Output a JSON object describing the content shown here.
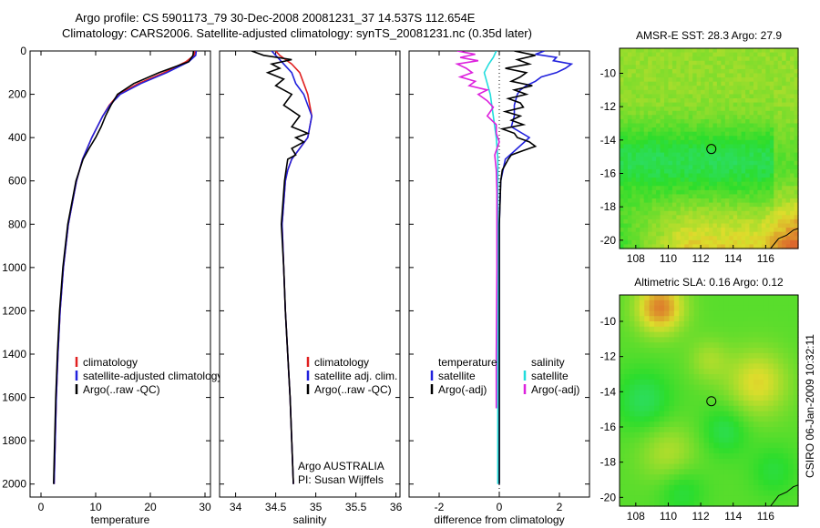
{
  "header": {
    "line1": "Argo profile: CS 5901173_79 30-Dec-2008 20081231_37 14.537S 112.654E",
    "line2": "Climatology: CARS2006. Satellite-adjusted climatology: synTS_20081231.nc (0.35d later)"
  },
  "colors": {
    "climatology": "#e02020",
    "satellite": "#2222dd",
    "argo": "#000000",
    "cyan": "#22dddd",
    "magenta": "#dd22dd"
  },
  "credit": {
    "line1": "Argo AUSTRALIA",
    "line2": "PI: Susan Wijffels"
  },
  "stamp": "CSIRO 06-Jan-2009 10:32:11",
  "chart_data": [
    {
      "type": "line",
      "id": "temperature",
      "xlabel": "temperature",
      "ylabel": "",
      "xlim": [
        -2,
        31
      ],
      "ylim": [
        0,
        2060
      ],
      "xticks": [
        "0",
        "10",
        "20",
        "30"
      ],
      "yticks": [
        "0",
        "200",
        "400",
        "600",
        "800",
        "1000",
        "1200",
        "1400",
        "1600",
        "1800",
        "2000"
      ],
      "legend": [
        "climatology",
        "satellite-adjusted climatology",
        "Argo(..raw -QC)"
      ],
      "series": [
        {
          "name": "climatology",
          "color_key": "climatology",
          "depth": [
            0,
            20,
            50,
            100,
            150,
            200,
            250,
            300,
            400,
            500,
            600,
            800,
            1000,
            1200,
            1400,
            1600,
            1800,
            2000
          ],
          "values": [
            28.2,
            28.0,
            26.5,
            22.5,
            17.8,
            14.2,
            12.5,
            11.3,
            9.3,
            7.6,
            6.5,
            5.0,
            4.1,
            3.5,
            3.1,
            2.8,
            2.6,
            2.4
          ]
        },
        {
          "name": "satellite-adjusted climatology",
          "color_key": "satellite",
          "depth": [
            0,
            20,
            50,
            100,
            150,
            200,
            250,
            300,
            400,
            500,
            600,
            800,
            1000,
            1200,
            1400,
            1600,
            1800,
            2000
          ],
          "values": [
            28.4,
            28.3,
            27.0,
            23.0,
            18.3,
            14.5,
            12.6,
            11.3,
            9.3,
            7.6,
            6.5,
            5.0,
            4.1,
            3.5,
            3.1,
            2.8,
            2.6,
            2.4
          ]
        },
        {
          "name": "Argo(..raw -QC)",
          "color_key": "argo",
          "depth": [
            0,
            20,
            50,
            100,
            150,
            200,
            250,
            300,
            350,
            400,
            450,
            500,
            600,
            800,
            1000,
            1200,
            1400,
            1600,
            1800,
            2000
          ],
          "values": [
            27.9,
            27.8,
            27.0,
            21.6,
            17.0,
            14.0,
            12.8,
            11.8,
            11.0,
            10.0,
            8.8,
            7.7,
            6.4,
            4.9,
            4.0,
            3.4,
            3.0,
            2.7,
            2.5,
            2.3
          ]
        }
      ]
    },
    {
      "type": "line",
      "id": "salinity",
      "xlabel": "salinity",
      "ylabel": "",
      "xlim": [
        33.8,
        36.05
      ],
      "ylim": [
        0,
        2060
      ],
      "xticks": [
        "34",
        "34.5",
        "35",
        "35.5",
        "36"
      ],
      "legend": [
        "climatology",
        "satellite adj. clim.",
        "Argo(..raw -QC)"
      ],
      "series": [
        {
          "name": "climatology",
          "color_key": "climatology",
          "depth": [
            0,
            20,
            60,
            100,
            150,
            200,
            300,
            400,
            450,
            500,
            550,
            600,
            800,
            1000,
            1200,
            1400,
            1600,
            1800,
            2000
          ],
          "values": [
            34.5,
            34.55,
            34.7,
            34.8,
            34.85,
            34.9,
            34.95,
            34.9,
            34.8,
            34.7,
            34.65,
            34.62,
            34.58,
            34.6,
            34.62,
            34.65,
            34.68,
            34.7,
            34.72
          ]
        },
        {
          "name": "satellite adj. clim.",
          "color_key": "satellite",
          "depth": [
            0,
            20,
            60,
            100,
            150,
            200,
            300,
            400,
            450,
            500,
            550,
            600,
            800,
            1000,
            1200,
            1400,
            1600,
            1800,
            2000
          ],
          "values": [
            34.45,
            34.5,
            34.6,
            34.7,
            34.75,
            34.85,
            34.95,
            34.9,
            34.8,
            34.7,
            34.65,
            34.62,
            34.58,
            34.6,
            34.62,
            34.65,
            34.68,
            34.7,
            34.72
          ]
        },
        {
          "name": "Argo(..raw -QC)",
          "color_key": "argo",
          "depth": [
            0,
            20,
            40,
            60,
            80,
            100,
            130,
            160,
            200,
            250,
            300,
            350,
            380,
            400,
            420,
            450,
            480,
            500,
            550,
            600,
            800,
            1000,
            1200,
            1400,
            1600,
            1800,
            2000
          ],
          "values": [
            34.2,
            34.35,
            34.7,
            34.45,
            34.55,
            34.4,
            34.6,
            34.5,
            34.7,
            34.6,
            34.8,
            34.7,
            34.9,
            34.75,
            34.85,
            34.7,
            34.75,
            34.65,
            34.63,
            34.61,
            34.57,
            34.6,
            34.62,
            34.65,
            34.68,
            34.7,
            34.72
          ]
        }
      ]
    },
    {
      "type": "line",
      "id": "difference",
      "xlabel": "difference from climatology",
      "ylabel": "",
      "xlim": [
        -3,
        3
      ],
      "ylim": [
        0,
        2060
      ],
      "xticks": [
        "-2",
        "0",
        "2"
      ],
      "legend": [
        {
          "title": "temperature",
          "items": [
            "satellite",
            "Argo(-adj)"
          ]
        },
        {
          "title": "salinity",
          "items": [
            "satellite",
            "Argo(-adj)"
          ]
        }
      ],
      "series": [
        {
          "name": "temperature satellite",
          "color_key": "satellite",
          "depth": [
            0,
            15,
            30,
            45,
            60,
            80,
            100,
            120,
            140,
            160,
            180,
            200,
            250,
            300,
            350,
            400,
            450,
            500,
            600,
            800,
            1000,
            1400,
            2000
          ],
          "values": [
            1.5,
            1.2,
            1.9,
            1.8,
            2.4,
            2.2,
            1.9,
            1.4,
            1.2,
            0.9,
            0.7,
            0.6,
            0.5,
            0.5,
            0.4,
            1.0,
            0.6,
            0.2,
            0.05,
            0,
            0,
            0,
            0
          ]
        },
        {
          "name": "temperature Argo(-adj)",
          "color_key": "argo",
          "depth": [
            0,
            20,
            40,
            60,
            80,
            100,
            120,
            140,
            160,
            180,
            200,
            220,
            240,
            260,
            280,
            300,
            320,
            340,
            360,
            380,
            400,
            420,
            440,
            460,
            480,
            500,
            550,
            600,
            800,
            1000,
            1400,
            2000
          ],
          "values": [
            0.5,
            1.2,
            0.6,
            1.0,
            0.2,
            0.9,
            0.7,
            0.4,
            1.1,
            0.5,
            0.9,
            0.3,
            0.7,
            0.8,
            0.2,
            0.7,
            0.4,
            0.8,
            0.1,
            0.5,
            0.6,
            1.0,
            1.2,
            0.8,
            0.4,
            0.3,
            0.1,
            0.05,
            0,
            0,
            0,
            0
          ]
        },
        {
          "name": "salinity satellite",
          "color_key": "cyan",
          "depth": [
            0,
            30,
            60,
            100,
            150,
            200,
            300,
            400,
            500,
            700,
            1000,
            1400,
            2000
          ],
          "values": [
            -0.1,
            -0.2,
            -0.35,
            -0.5,
            -0.4,
            -0.3,
            -0.2,
            -0.1,
            -0.05,
            -0.05,
            -0.05,
            -0.05,
            -0.05
          ]
        },
        {
          "name": "salinity Argo(-adj)",
          "color_key": "magenta",
          "depth": [
            0,
            15,
            30,
            45,
            60,
            80,
            100,
            120,
            140,
            160,
            180,
            200,
            230,
            260,
            300,
            340,
            380,
            420,
            480,
            550,
            650,
            1000,
            1400,
            1650
          ],
          "values": [
            -1.4,
            -0.8,
            -1.3,
            -0.7,
            -1.4,
            -1.1,
            -0.9,
            -1.3,
            -0.8,
            -1.0,
            -0.4,
            -0.7,
            -0.4,
            -0.2,
            -0.4,
            -0.1,
            -0.1,
            0,
            -0.15,
            -0.1,
            -0.08,
            -0.08,
            -0.1,
            -0.1
          ]
        }
      ]
    },
    {
      "type": "heatmap",
      "id": "sst",
      "title": "AMSR-E SST: 28.3 Argo: 27.9",
      "xlim": [
        107,
        118
      ],
      "ylim": [
        -20.5,
        -8.5
      ],
      "xticks": [
        "108",
        "110",
        "112",
        "114",
        "116"
      ],
      "yticks": [
        "-10",
        "-12",
        "-14",
        "-16",
        "-18",
        "-20"
      ],
      "marker": {
        "lon": 112.654,
        "lat": -14.537
      }
    },
    {
      "type": "heatmap",
      "id": "sla",
      "title": "Altimetric SLA: 0.16 Argo: 0.12",
      "xlim": [
        107,
        118
      ],
      "ylim": [
        -20.5,
        -8.5
      ],
      "xticks": [
        "108",
        "110",
        "112",
        "114",
        "116"
      ],
      "yticks": [
        "-10",
        "-12",
        "-14",
        "-16",
        "-18",
        "-20"
      ],
      "marker": {
        "lon": 112.654,
        "lat": -14.537
      }
    }
  ]
}
